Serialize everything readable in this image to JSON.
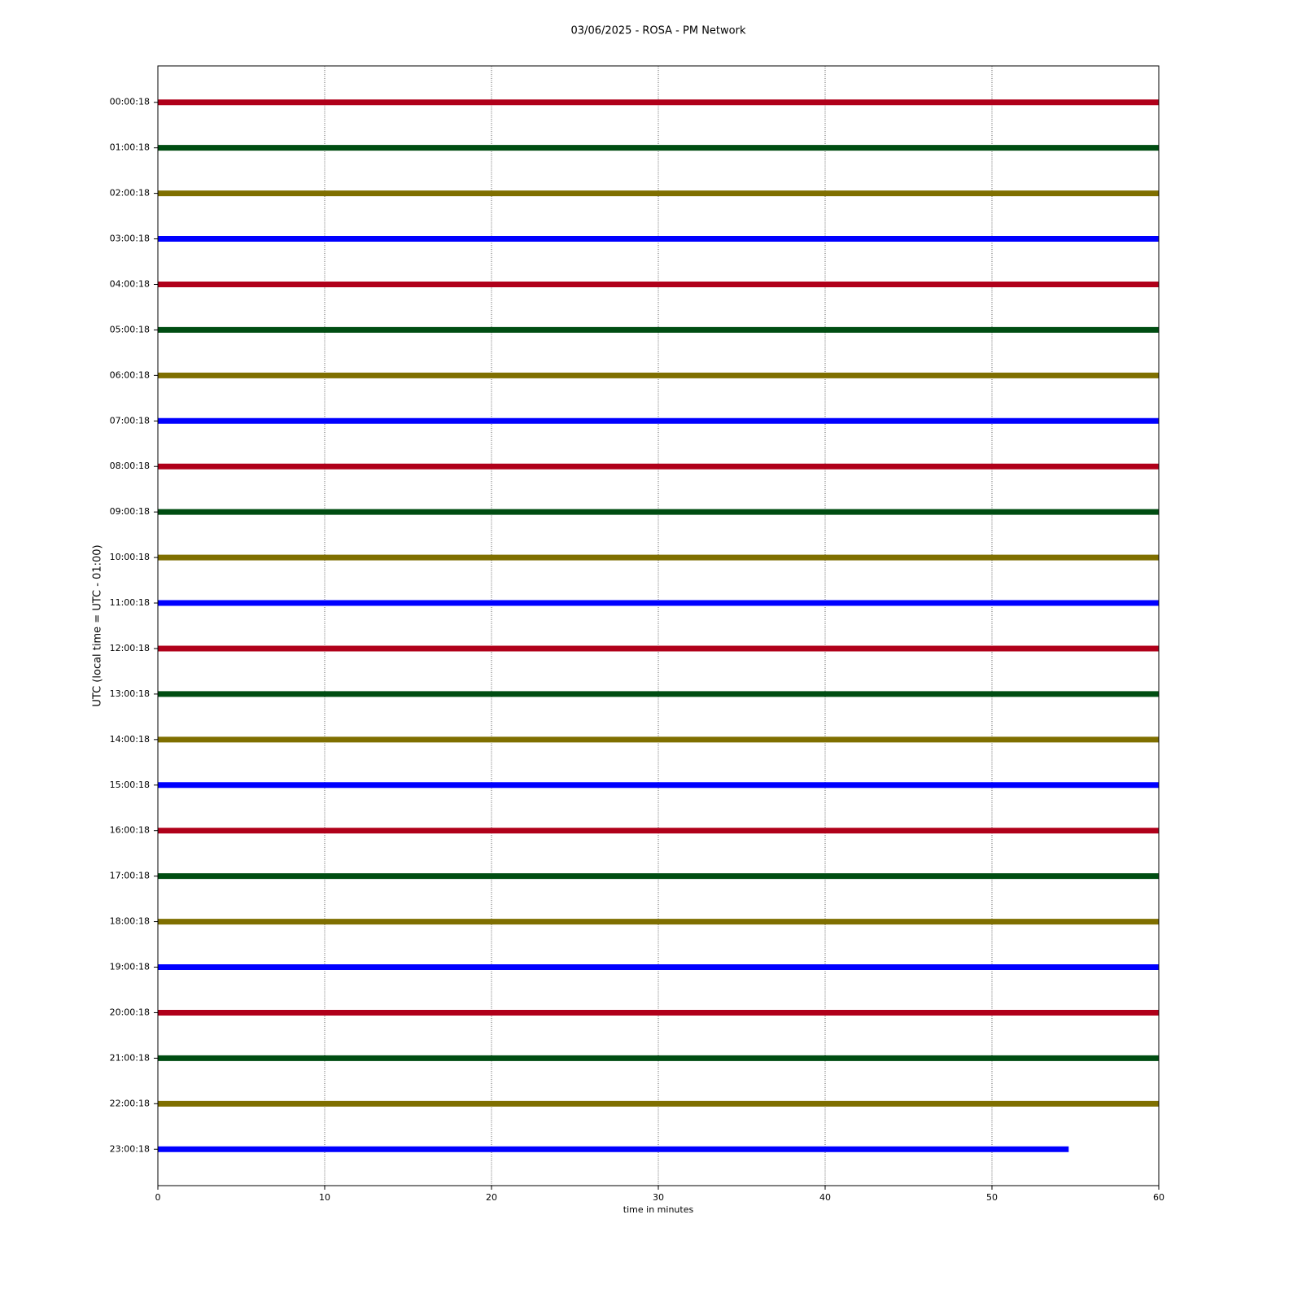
{
  "chart_data": {
    "type": "helicorder",
    "title": "03/06/2025 - ROSA - PM Network",
    "x_label": "time in minutes",
    "y_label": "UTC (local time = UTC - 01:00)",
    "xlim": [
      0,
      60
    ],
    "xticks": [
      0,
      10,
      20,
      30,
      40,
      50,
      60
    ],
    "grid": true,
    "series": [
      {
        "name": "00:00:18",
        "color": "#b0001a",
        "x": [
          0,
          60
        ]
      },
      {
        "name": "01:00:18",
        "color": "#004d12",
        "x": [
          0,
          60
        ]
      },
      {
        "name": "02:00:18",
        "color": "#7f6f00",
        "x": [
          0,
          60
        ]
      },
      {
        "name": "03:00:18",
        "color": "#0000ff",
        "x": [
          0,
          60
        ]
      },
      {
        "name": "04:00:18",
        "color": "#b0001a",
        "x": [
          0,
          60
        ]
      },
      {
        "name": "05:00:18",
        "color": "#004d12",
        "x": [
          0,
          60
        ]
      },
      {
        "name": "06:00:18",
        "color": "#7f6f00",
        "x": [
          0,
          60
        ]
      },
      {
        "name": "07:00:18",
        "color": "#0000ff",
        "x": [
          0,
          60
        ]
      },
      {
        "name": "08:00:18",
        "color": "#b0001a",
        "x": [
          0,
          60
        ]
      },
      {
        "name": "09:00:18",
        "color": "#004d12",
        "x": [
          0,
          60
        ]
      },
      {
        "name": "10:00:18",
        "color": "#7f6f00",
        "x": [
          0,
          60
        ]
      },
      {
        "name": "11:00:18",
        "color": "#0000ff",
        "x": [
          0,
          60
        ]
      },
      {
        "name": "12:00:18",
        "color": "#b0001a",
        "x": [
          0,
          60
        ]
      },
      {
        "name": "13:00:18",
        "color": "#004d12",
        "x": [
          0,
          60
        ]
      },
      {
        "name": "14:00:18",
        "color": "#7f6f00",
        "x": [
          0,
          60
        ]
      },
      {
        "name": "15:00:18",
        "color": "#0000ff",
        "x": [
          0,
          60
        ]
      },
      {
        "name": "16:00:18",
        "color": "#b0001a",
        "x": [
          0,
          60
        ]
      },
      {
        "name": "17:00:18",
        "color": "#004d12",
        "x": [
          0,
          60
        ]
      },
      {
        "name": "18:00:18",
        "color": "#7f6f00",
        "x": [
          0,
          60
        ]
      },
      {
        "name": "19:00:18",
        "color": "#0000ff",
        "x": [
          0,
          60
        ]
      },
      {
        "name": "20:00:18",
        "color": "#b0001a",
        "x": [
          0,
          60
        ]
      },
      {
        "name": "21:00:18",
        "color": "#004d12",
        "x": [
          0,
          60
        ]
      },
      {
        "name": "22:00:18",
        "color": "#7f6f00",
        "x": [
          0,
          60
        ]
      },
      {
        "name": "23:00:18",
        "color": "#0000ff",
        "x": [
          0,
          54.6
        ]
      }
    ]
  }
}
